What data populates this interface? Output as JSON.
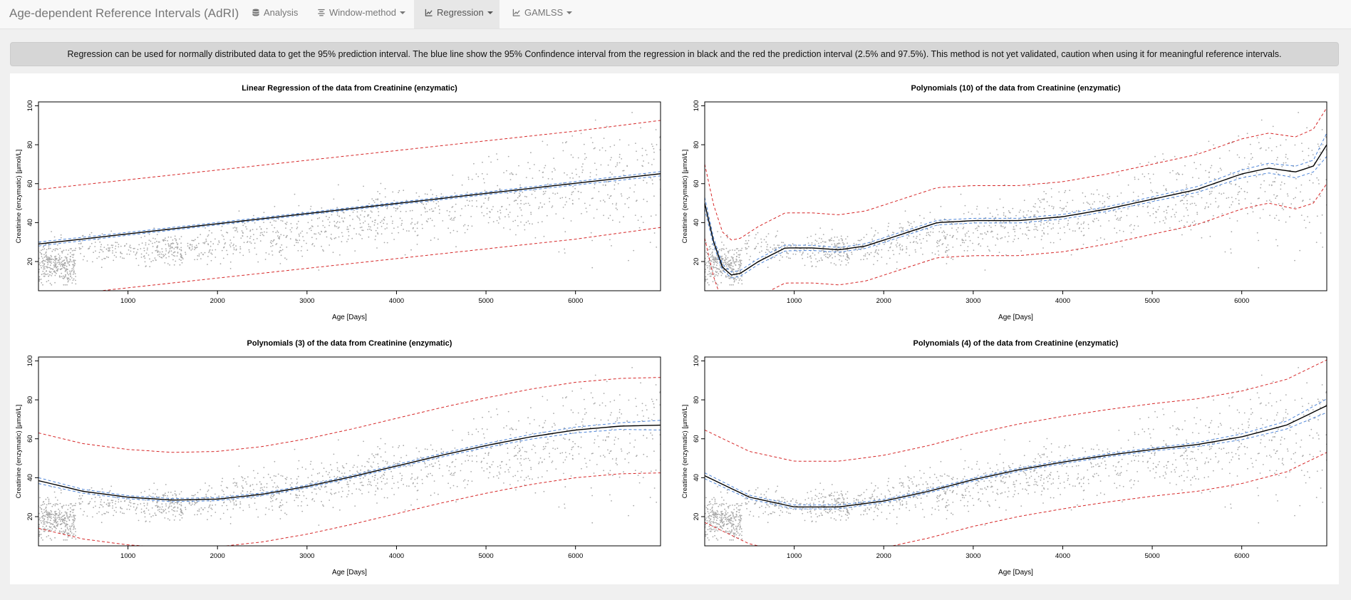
{
  "app": {
    "title": "Age-dependent Reference Intervals (AdRI)"
  },
  "nav": {
    "items": [
      {
        "label": "Analysis",
        "icon": "database-icon",
        "caret": false,
        "active": false
      },
      {
        "label": "Window-method",
        "icon": "align-icon",
        "caret": true,
        "active": false
      },
      {
        "label": "Regression",
        "icon": "line-chart-icon",
        "caret": true,
        "active": true
      },
      {
        "label": "GAMLSS",
        "icon": "line-chart-icon",
        "caret": true,
        "active": false
      }
    ]
  },
  "banner": {
    "text": "Regression can be used for normally distributed data to get the 95% prediction interval. The blue line show the 95% Confindence interval from the regression in black and the red the prediction interval (2.5% and 97.5%). This method is not yet validated, caution when using it for meaningful reference intervals."
  },
  "colors": {
    "fit": "#000000",
    "confidence": "#4f86d9",
    "prediction": "#d62728",
    "points": "#a9a9a9"
  },
  "chart_data": [
    {
      "type": "scatter",
      "title": "Linear Regression of the data from Creatinine (enzymatic)",
      "xlabel": "Age [Days]",
      "ylabel": "Creatinine (enzymatic) [µmol/L]",
      "xlim": [
        0,
        6950
      ],
      "ylim": [
        5,
        102
      ],
      "xticks": [
        1000,
        2000,
        3000,
        4000,
        5000,
        6000
      ],
      "yticks": [
        20,
        40,
        60,
        80,
        100
      ],
      "series": [
        {
          "role": "fit",
          "x": [
            0,
            1000,
            2000,
            3000,
            4000,
            5000,
            6000,
            6950
          ],
          "y": [
            29,
            34.2,
            39.4,
            44.6,
            49.8,
            55,
            60.2,
            65.1
          ]
        },
        {
          "role": "confidence-lower",
          "x": [
            0,
            1000,
            2000,
            3000,
            4000,
            5000,
            6000,
            6950
          ],
          "y": [
            28,
            33.5,
            38.8,
            44,
            49.2,
            54.3,
            59.3,
            64
          ]
        },
        {
          "role": "confidence-upper",
          "x": [
            0,
            1000,
            2000,
            3000,
            4000,
            5000,
            6000,
            6950
          ],
          "y": [
            30,
            35,
            40.1,
            45.2,
            50.4,
            55.7,
            61.1,
            66.2
          ]
        },
        {
          "role": "prediction-lower",
          "x": [
            0,
            1000,
            2000,
            3000,
            4000,
            5000,
            6000,
            6950
          ],
          "y": [
            1.5,
            6.5,
            11.5,
            16.5,
            21.5,
            26.5,
            31.5,
            37.5
          ]
        },
        {
          "role": "prediction-upper",
          "x": [
            0,
            1000,
            2000,
            3000,
            4000,
            5000,
            6000,
            6950
          ],
          "y": [
            57,
            62,
            67,
            72,
            77,
            82,
            87,
            92.5
          ]
        }
      ]
    },
    {
      "type": "scatter",
      "title": "Polynomials (10) of the data from Creatinine (enzymatic)",
      "xlabel": "Age [Days]",
      "ylabel": "Creatinine (enzymatic) [µmol/L]",
      "xlim": [
        0,
        6950
      ],
      "ylim": [
        5,
        102
      ],
      "xticks": [
        1000,
        2000,
        3000,
        4000,
        5000,
        6000
      ],
      "yticks": [
        20,
        40,
        60,
        80,
        100
      ],
      "series": [
        {
          "role": "fit",
          "x": [
            0,
            100,
            200,
            300,
            400,
            600,
            900,
            1200,
            1500,
            1800,
            2200,
            2600,
            3000,
            3500,
            4000,
            4500,
            5000,
            5500,
            6000,
            6300,
            6600,
            6800,
            6950
          ],
          "y": [
            50,
            30,
            17,
            13,
            14,
            20,
            27,
            27,
            26,
            28,
            34,
            40,
            41,
            41,
            43,
            47,
            52,
            57,
            65,
            68,
            66,
            69,
            80
          ]
        },
        {
          "role": "confidence-lower",
          "x": [
            0,
            100,
            200,
            300,
            400,
            600,
            900,
            1200,
            1500,
            1800,
            2200,
            2600,
            3000,
            3500,
            4000,
            4500,
            5000,
            5500,
            6000,
            6300,
            6600,
            6800,
            6950
          ],
          "y": [
            47,
            28,
            15.5,
            11.5,
            12.5,
            18.5,
            25.5,
            25.7,
            24.8,
            26.8,
            32.8,
            38.8,
            39.8,
            39.8,
            41.8,
            45.8,
            50.8,
            55.5,
            63,
            65.5,
            63,
            66,
            74
          ]
        },
        {
          "role": "confidence-upper",
          "x": [
            0,
            100,
            200,
            300,
            400,
            600,
            900,
            1200,
            1500,
            1800,
            2200,
            2600,
            3000,
            3500,
            4000,
            4500,
            5000,
            5500,
            6000,
            6300,
            6600,
            6800,
            6950
          ],
          "y": [
            53,
            32,
            18.5,
            14.5,
            15.5,
            21.5,
            28.5,
            28.3,
            27.2,
            29.2,
            35.2,
            41.2,
            42.2,
            42.2,
            44.2,
            48.2,
            53.2,
            58.5,
            67,
            70.5,
            69,
            72,
            86
          ]
        },
        {
          "role": "prediction-lower",
          "x": [
            0,
            100,
            200,
            300,
            400,
            600,
            900,
            1200,
            1500,
            1800,
            2200,
            2600,
            3000,
            3500,
            4000,
            4500,
            5000,
            5500,
            6000,
            6300,
            6600,
            6800,
            6950
          ],
          "y": [
            32,
            12,
            -1,
            -5,
            -4,
            2,
            9,
            9,
            8,
            10,
            16,
            22,
            23,
            23,
            25,
            29,
            34,
            39,
            47,
            50,
            47,
            50,
            60
          ]
        },
        {
          "role": "prediction-upper",
          "x": [
            0,
            100,
            200,
            300,
            400,
            600,
            900,
            1200,
            1500,
            1800,
            2200,
            2600,
            3000,
            3500,
            4000,
            4500,
            5000,
            5500,
            6000,
            6300,
            6600,
            6800,
            6950
          ],
          "y": [
            70,
            49,
            35,
            31,
            32,
            38,
            45,
            45,
            44,
            46,
            52,
            58,
            59,
            59,
            61,
            65,
            70,
            75,
            83,
            86,
            84,
            88,
            99
          ]
        }
      ]
    },
    {
      "type": "scatter",
      "title": "Polynomials (3) of the data from Creatinine (enzymatic)",
      "xlabel": "Age [Days]",
      "ylabel": "Creatinine (enzymatic) [µmol/L]",
      "xlim": [
        0,
        6950
      ],
      "ylim": [
        5,
        102
      ],
      "xticks": [
        1000,
        2000,
        3000,
        4000,
        5000,
        6000
      ],
      "yticks": [
        20,
        40,
        60,
        80,
        100
      ],
      "series": [
        {
          "role": "fit",
          "x": [
            0,
            500,
            1000,
            1500,
            2000,
            2500,
            3000,
            3500,
            4000,
            4500,
            5000,
            5500,
            6000,
            6500,
            6950
          ],
          "y": [
            38.5,
            33,
            30,
            28.5,
            29,
            31.5,
            35.5,
            40.5,
            46,
            51.5,
            56.5,
            61,
            64.5,
            66.5,
            67
          ]
        },
        {
          "role": "confidence-lower",
          "x": [
            0,
            500,
            1000,
            1500,
            2000,
            2500,
            3000,
            3500,
            4000,
            4500,
            5000,
            5500,
            6000,
            6500,
            6950
          ],
          "y": [
            37,
            32,
            29.2,
            27.7,
            28.2,
            30.8,
            34.8,
            39.8,
            45.2,
            50.6,
            55.5,
            59.8,
            63,
            64.8,
            64.5
          ]
        },
        {
          "role": "confidence-upper",
          "x": [
            0,
            500,
            1000,
            1500,
            2000,
            2500,
            3000,
            3500,
            4000,
            4500,
            5000,
            5500,
            6000,
            6500,
            6950
          ],
          "y": [
            40,
            34,
            30.8,
            29.3,
            29.8,
            32.2,
            36.2,
            41.2,
            46.8,
            52.4,
            57.5,
            62.2,
            66,
            68.2,
            69.5
          ]
        },
        {
          "role": "prediction-lower",
          "x": [
            0,
            500,
            1000,
            1500,
            2000,
            2500,
            3000,
            3500,
            4000,
            4500,
            5000,
            5500,
            6000,
            6500,
            6950
          ],
          "y": [
            14,
            8.5,
            5.5,
            4,
            4.5,
            7,
            11,
            16,
            21.5,
            27,
            32,
            36.5,
            40,
            42,
            42.5
          ]
        },
        {
          "role": "prediction-upper",
          "x": [
            0,
            500,
            1000,
            1500,
            2000,
            2500,
            3000,
            3500,
            4000,
            4500,
            5000,
            5500,
            6000,
            6500,
            6950
          ],
          "y": [
            63,
            57.5,
            54.5,
            53,
            53.5,
            56,
            60,
            65,
            70.5,
            76,
            81,
            85.5,
            89,
            91,
            91.5
          ]
        }
      ]
    },
    {
      "type": "scatter",
      "title": "Polynomials (4) of the data from Creatinine (enzymatic)",
      "xlabel": "Age [Days]",
      "ylabel": "Creatinine (enzymatic) [µmol/L]",
      "xlim": [
        0,
        6950
      ],
      "ylim": [
        5,
        102
      ],
      "xticks": [
        1000,
        2000,
        3000,
        4000,
        5000,
        6000
      ],
      "yticks": [
        20,
        40,
        60,
        80,
        100
      ],
      "series": [
        {
          "role": "fit",
          "x": [
            0,
            500,
            1000,
            1500,
            2000,
            2500,
            3000,
            3500,
            4000,
            4500,
            5000,
            5500,
            6000,
            6500,
            6950
          ],
          "y": [
            41,
            30,
            25,
            25,
            28,
            33,
            39,
            44,
            48,
            51.5,
            54.5,
            57,
            61,
            67,
            77
          ]
        },
        {
          "role": "confidence-lower",
          "x": [
            0,
            500,
            1000,
            1500,
            2000,
            2500,
            3000,
            3500,
            4000,
            4500,
            5000,
            5500,
            6000,
            6500,
            6950
          ],
          "y": [
            39.5,
            29,
            24,
            24,
            27.2,
            32.2,
            38.2,
            43.2,
            47.2,
            50.7,
            53.7,
            56,
            59.5,
            65,
            73.5
          ]
        },
        {
          "role": "confidence-upper",
          "x": [
            0,
            500,
            1000,
            1500,
            2000,
            2500,
            3000,
            3500,
            4000,
            4500,
            5000,
            5500,
            6000,
            6500,
            6950
          ],
          "y": [
            42.5,
            31,
            26,
            26,
            28.8,
            33.8,
            39.8,
            44.8,
            48.8,
            52.3,
            55.3,
            58,
            62.5,
            69,
            80.5
          ]
        },
        {
          "role": "prediction-lower",
          "x": [
            0,
            500,
            1000,
            1500,
            2000,
            2500,
            3000,
            3500,
            4000,
            4500,
            5000,
            5500,
            6000,
            6500,
            6950
          ],
          "y": [
            17,
            6,
            1,
            1,
            4,
            9,
            15,
            20,
            24,
            27.5,
            30.5,
            33,
            37,
            43,
            53
          ]
        },
        {
          "role": "prediction-upper",
          "x": [
            0,
            500,
            1000,
            1500,
            2000,
            2500,
            3000,
            3500,
            4000,
            4500,
            5000,
            5500,
            6000,
            6500,
            6950
          ],
          "y": [
            64.5,
            53.5,
            48.5,
            48.5,
            51.5,
            56.5,
            62.5,
            67.5,
            71.5,
            75,
            78,
            80.5,
            84.5,
            90.5,
            100.5
          ]
        }
      ]
    }
  ]
}
